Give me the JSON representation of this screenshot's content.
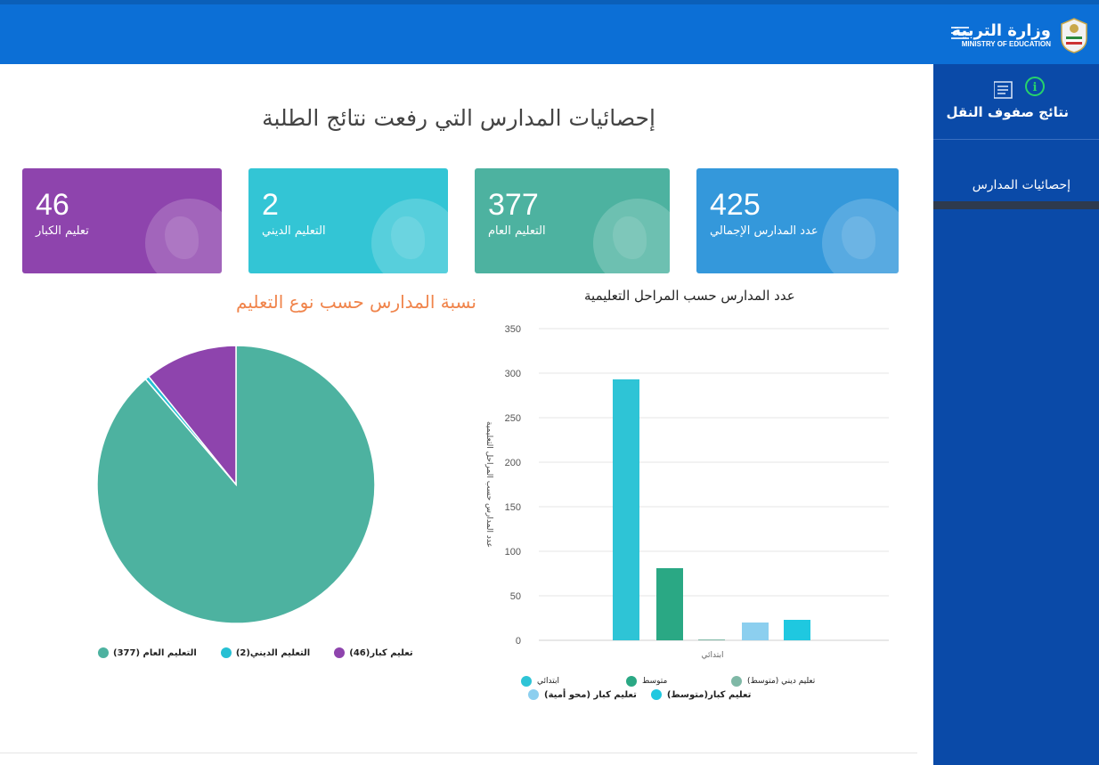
{
  "header": {
    "brand_ar": "وزارة التربية",
    "brand_en": "MINISTRY OF EDUCATION"
  },
  "sidebar": {
    "items": [
      {
        "label": "نتائج صفوف النقل"
      },
      {
        "label": "إحصائيات المدارس"
      }
    ]
  },
  "page": {
    "title": "إحصائيات المدارس التي رفعت نتائج الطلبة"
  },
  "cards": [
    {
      "value": "46",
      "caption": "تعليم الكبار",
      "color": "#8e44ad"
    },
    {
      "value": "2",
      "caption": "التعليم الديني",
      "color": "#33c5d5"
    },
    {
      "value": "377",
      "caption": "التعليم العام",
      "color": "#4db2a0"
    },
    {
      "value": "425",
      "caption": "عدد المدارس الإجمالي",
      "color": "#3498db"
    }
  ],
  "chart_data": [
    {
      "type": "pie",
      "title": "نسبة المدارس حسب نوع التعليم",
      "slices": [
        {
          "label": "التعليم العام (377)",
          "value": 377,
          "color": "#4db2a0"
        },
        {
          "label": "التعليم الديني(2)",
          "value": 2,
          "color": "#26c0d3"
        },
        {
          "label": "تعليم كبار(46)",
          "value": 46,
          "color": "#8e44ad"
        }
      ]
    },
    {
      "type": "bar",
      "title": "عدد المدارس حسب المراحل التعليمية",
      "xlabel": "ابتدائي",
      "ylabel": "عدد المدارس حسب المراحل التعليمية",
      "ylim": [
        0,
        350
      ],
      "yticks": [
        0,
        50,
        100,
        150,
        200,
        250,
        300,
        350
      ],
      "grid": true,
      "series": [
        {
          "name": "ابتدائي",
          "value": 0,
          "color": "#2ec4d6"
        },
        {
          "name": "ابتدائي",
          "value": 293,
          "color": "#2ec4d6"
        },
        {
          "name": "متوسط",
          "value": 81,
          "color": "#2aa884"
        },
        {
          "name": "تعليم ديني (متوسط)",
          "value": 1,
          "color": "#7fb8a6"
        },
        {
          "name": "تعليم كبار (محو أمية)",
          "value": 20,
          "color": "#8ccfef"
        },
        {
          "name": "تعليم كبار(متوسط)",
          "value": 23,
          "color": "#1fc8e0"
        }
      ],
      "legend": [
        {
          "label": "ابتدائي",
          "color": "#2ec4d6"
        },
        {
          "label": "متوسط",
          "color": "#2aa884"
        },
        {
          "label": "تعليم ديني (متوسط)",
          "color": "#7fb8a6"
        },
        {
          "label": "تعليم كبار (محو أمية)",
          "color": "#8ccfef"
        },
        {
          "label": "تعليم كبار(متوسط)",
          "color": "#1fc8e0"
        }
      ]
    }
  ]
}
